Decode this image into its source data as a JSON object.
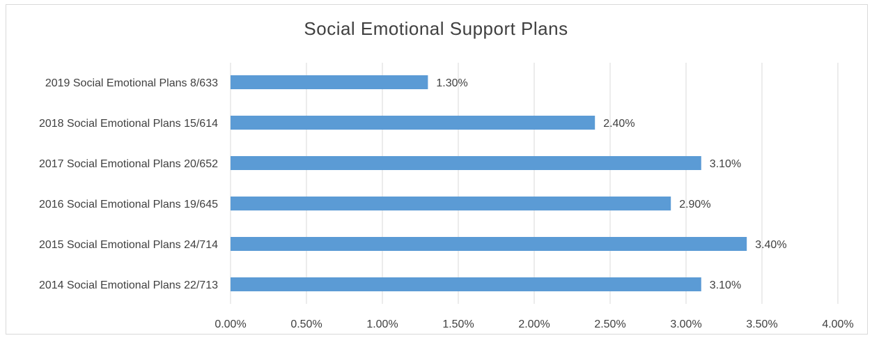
{
  "chart_data": {
    "type": "bar",
    "orientation": "horizontal",
    "title": "Social Emotional Support  Plans",
    "categories": [
      "2019 Social Emotional Plans 8/633",
      "2018 Social Emotional Plans 15/614",
      "2017 Social Emotional Plans 20/652",
      "2016 Social Emotional Plans 19/645",
      "2015 Social Emotional Plans 24/714",
      "2014 Social Emotional Plans 22/713"
    ],
    "values": [
      1.3,
      2.4,
      3.1,
      2.9,
      3.4,
      3.1
    ],
    "value_labels": [
      "1.30%",
      "2.40%",
      "3.10%",
      "2.90%",
      "3.40%",
      "3.10%"
    ],
    "xlim": [
      0,
      4
    ],
    "x_ticks": [
      0,
      0.5,
      1,
      1.5,
      2,
      2.5,
      3,
      3.5,
      4
    ],
    "x_tick_labels": [
      "0.00%",
      "0.50%",
      "1.00%",
      "1.50%",
      "2.00%",
      "2.50%",
      "3.00%",
      "3.50%",
      "4.00%"
    ],
    "xlabel": "",
    "ylabel": "",
    "grid": "vertical",
    "legend": "none",
    "colors": {
      "bar": "#5b9bd5",
      "grid": "#d9d9d9",
      "text": "#404040"
    }
  }
}
